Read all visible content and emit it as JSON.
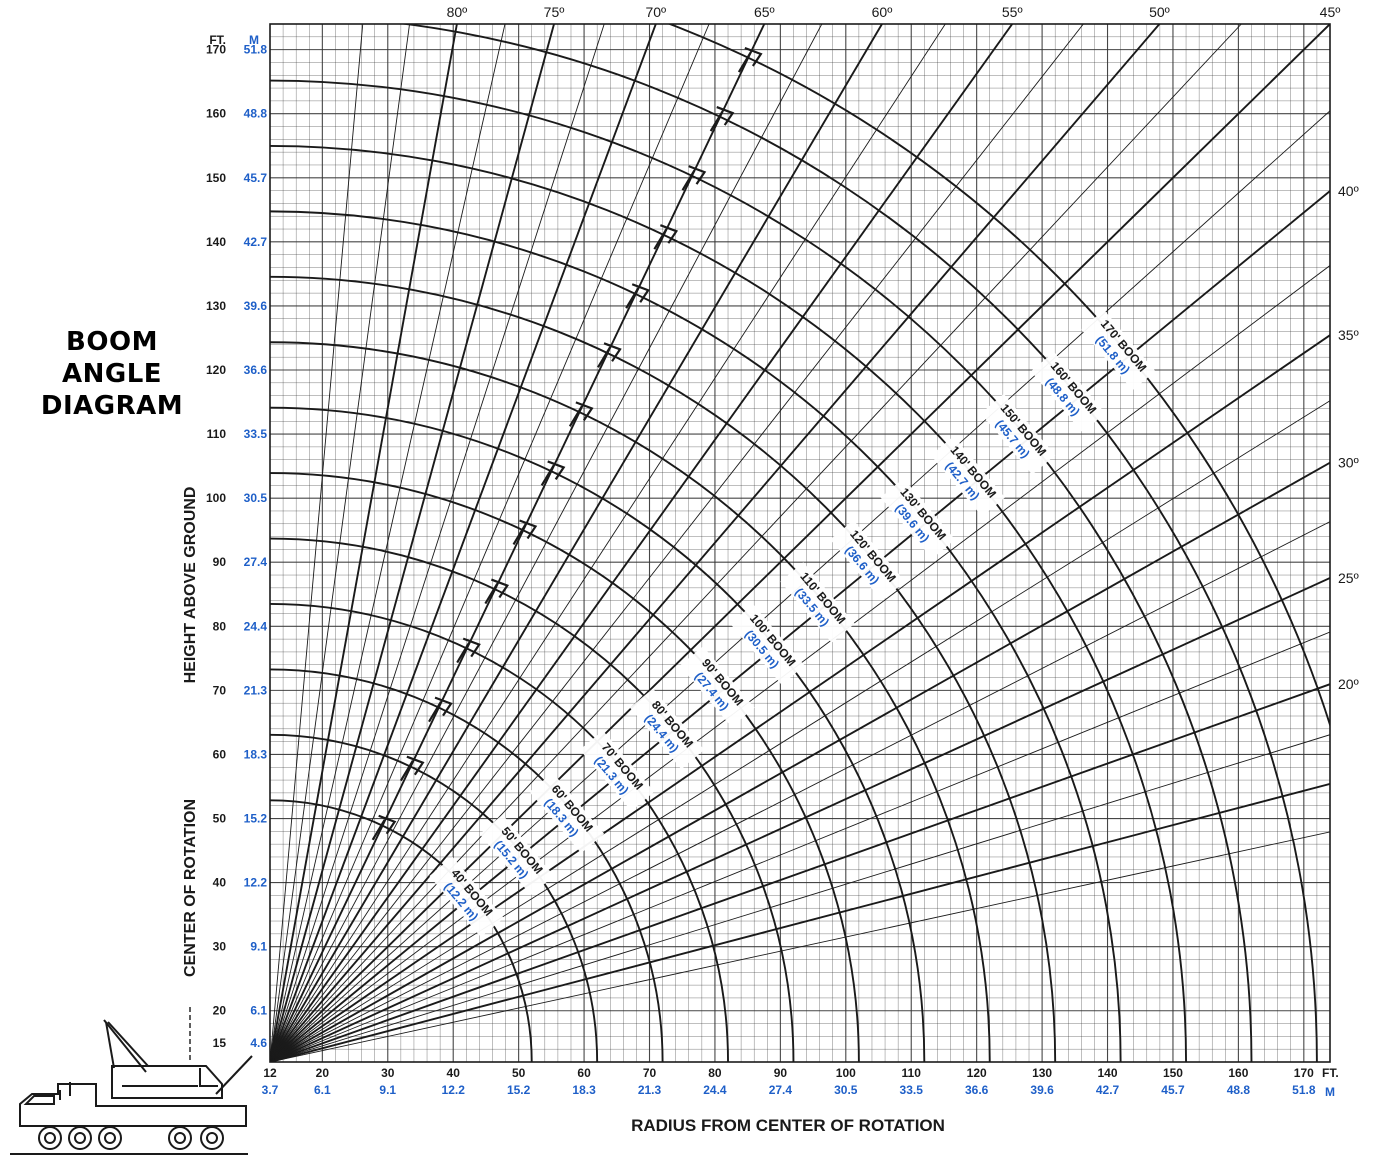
{
  "title_lines": [
    "BOOM",
    "ANGLE",
    "DIAGRAM"
  ],
  "colors": {
    "ink": "#1a1a1a",
    "grid": "#333333",
    "accent": "#1e5fc8",
    "paper": "#ffffff"
  },
  "chart_data": {
    "type": "line",
    "title": "BOOM ANGLE DIAGRAM",
    "xlabel": "RADIUS FROM CENTER OF ROTATION",
    "ylabel": "HEIGHT ABOVE GROUND",
    "ylabel2": "CENTER OF ROTATION",
    "x_unit_ft": "FT.",
    "x_unit_m": "M",
    "y_unit_ft": "FT.",
    "y_unit_m": "M",
    "xlim": [
      12,
      174
    ],
    "ylim": [
      12,
      174
    ],
    "grid": true,
    "pivot": {
      "x": 12,
      "y": 12
    },
    "x_ticks": [
      {
        "ft": "12",
        "m": "3.7",
        "v": 12
      },
      {
        "ft": "20",
        "m": "6.1",
        "v": 20
      },
      {
        "ft": "30",
        "m": "9.1",
        "v": 30
      },
      {
        "ft": "40",
        "m": "12.2",
        "v": 40
      },
      {
        "ft": "50",
        "m": "15.2",
        "v": 50
      },
      {
        "ft": "60",
        "m": "18.3",
        "v": 60
      },
      {
        "ft": "70",
        "m": "21.3",
        "v": 70
      },
      {
        "ft": "80",
        "m": "24.4",
        "v": 80
      },
      {
        "ft": "90",
        "m": "27.4",
        "v": 90
      },
      {
        "ft": "100",
        "m": "30.5",
        "v": 100
      },
      {
        "ft": "110",
        "m": "33.5",
        "v": 110
      },
      {
        "ft": "120",
        "m": "36.6",
        "v": 120
      },
      {
        "ft": "130",
        "m": "39.6",
        "v": 130
      },
      {
        "ft": "140",
        "m": "42.7",
        "v": 140
      },
      {
        "ft": "150",
        "m": "45.7",
        "v": 150
      },
      {
        "ft": "160",
        "m": "48.8",
        "v": 160
      },
      {
        "ft": "170",
        "m": "51.8",
        "v": 170
      }
    ],
    "y_ticks": [
      {
        "ft": "15",
        "m": "4.6",
        "v": 15
      },
      {
        "ft": "20",
        "m": "6.1",
        "v": 20
      },
      {
        "ft": "30",
        "m": "9.1",
        "v": 30
      },
      {
        "ft": "40",
        "m": "12.2",
        "v": 40
      },
      {
        "ft": "50",
        "m": "15.2",
        "v": 50
      },
      {
        "ft": "60",
        "m": "18.3",
        "v": 60
      },
      {
        "ft": "70",
        "m": "21.3",
        "v": 70
      },
      {
        "ft": "80",
        "m": "24.4",
        "v": 80
      },
      {
        "ft": "90",
        "m": "27.4",
        "v": 90
      },
      {
        "ft": "100",
        "m": "30.5",
        "v": 100
      },
      {
        "ft": "110",
        "m": "33.5",
        "v": 110
      },
      {
        "ft": "120",
        "m": "36.6",
        "v": 120
      },
      {
        "ft": "130",
        "m": "39.6",
        "v": 130
      },
      {
        "ft": "140",
        "m": "42.7",
        "v": 140
      },
      {
        "ft": "150",
        "m": "45.7",
        "v": 150
      },
      {
        "ft": "160",
        "m": "48.8",
        "v": 160
      },
      {
        "ft": "170",
        "m": "51.8",
        "v": 170
      }
    ],
    "angle_lines": [
      {
        "deg": 80,
        "label": "80º"
      },
      {
        "deg": 75,
        "label": "75º"
      },
      {
        "deg": 70,
        "label": "70º"
      },
      {
        "deg": 65,
        "label": "65º"
      },
      {
        "deg": 60,
        "label": "60º"
      },
      {
        "deg": 55,
        "label": "55º"
      },
      {
        "deg": 50,
        "label": "50º"
      },
      {
        "deg": 45,
        "label": "45º"
      },
      {
        "deg": 40,
        "label": "40º"
      },
      {
        "deg": 35,
        "label": "35º"
      },
      {
        "deg": 30,
        "label": "30º"
      },
      {
        "deg": 25,
        "label": "25º"
      },
      {
        "deg": 20,
        "label": "20º"
      },
      {
        "deg": 15,
        "label": ""
      }
    ],
    "extra_angle_lines": [
      85,
      82.5,
      77.5,
      72.5,
      67.5,
      62.5,
      57.5,
      52.5,
      47.5,
      42.5,
      37.5,
      32.5,
      27.5,
      22.5,
      17.5,
      12.5
    ],
    "booms": [
      {
        "length_ft": 40,
        "label": "40' BOOM",
        "metric": "(12.2 m)"
      },
      {
        "length_ft": 50,
        "label": "50' BOOM",
        "metric": "(15.2 m)"
      },
      {
        "length_ft": 60,
        "label": "60' BOOM",
        "metric": "(18.3 m)"
      },
      {
        "length_ft": 70,
        "label": "70' BOOM",
        "metric": "(21.3 m)"
      },
      {
        "length_ft": 80,
        "label": "80' BOOM",
        "metric": "(24.4 m)"
      },
      {
        "length_ft": 90,
        "label": "90' BOOM",
        "metric": "(27.4 m)"
      },
      {
        "length_ft": 100,
        "label": "100' BOOM",
        "metric": "(30.5 m)"
      },
      {
        "length_ft": 110,
        "label": "110' BOOM",
        "metric": "(33.5 m)"
      },
      {
        "length_ft": 120,
        "label": "120' BOOM",
        "metric": "(36.6 m)"
      },
      {
        "length_ft": 130,
        "label": "130' BOOM",
        "metric": "(39.6 m)"
      },
      {
        "length_ft": 140,
        "label": "140' BOOM",
        "metric": "(42.7 m)"
      },
      {
        "length_ft": 150,
        "label": "150' BOOM",
        "metric": "(45.7 m)"
      },
      {
        "length_ft": 160,
        "label": "160' BOOM",
        "metric": "(48.8 m)"
      },
      {
        "length_ft": 170,
        "label": "170' BOOM",
        "metric": "(51.8 m)"
      }
    ]
  }
}
